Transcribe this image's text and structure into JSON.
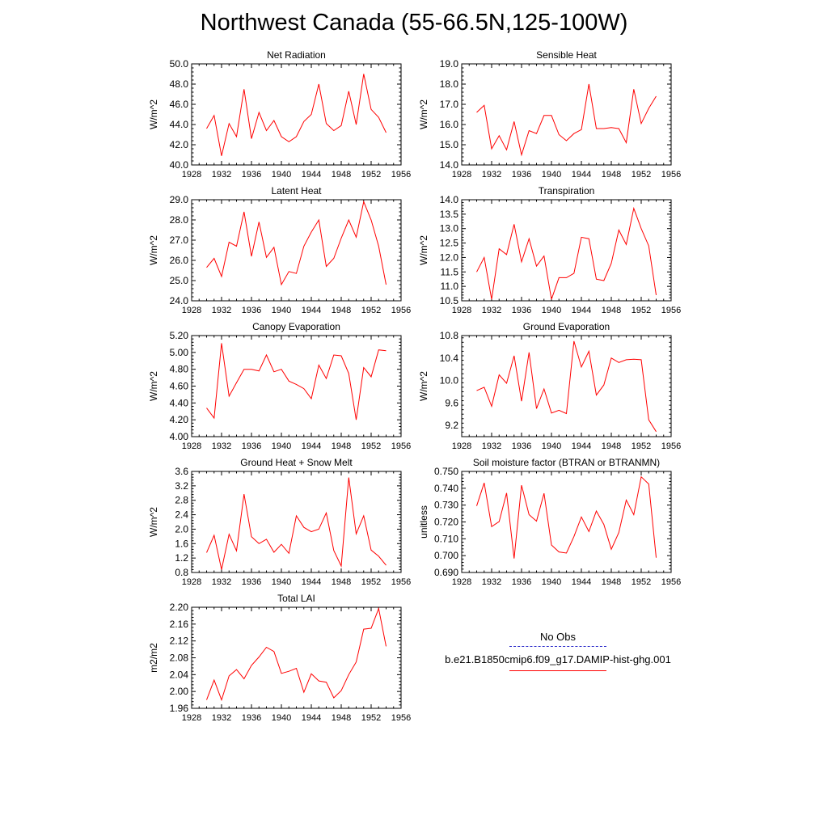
{
  "title": "Northwest Canada (55-66.5N,125-100W)",
  "legend": {
    "obs_label": "No Obs",
    "model_label": "b.e21.B1850cmip6.f09_g17.DAMIP-hist-ghg.001",
    "obs_color": "#3333cc",
    "model_color": "#ff0000"
  },
  "chart_data": [
    {
      "type": "line",
      "title": "Net Radiation",
      "ylabel": "W/m^2",
      "xlabel": "",
      "xlim": [
        1928,
        1956
      ],
      "xticks": [
        1928,
        1932,
        1936,
        1940,
        1944,
        1948,
        1952,
        1956
      ],
      "ylim": [
        40.0,
        50.0
      ],
      "yticks": [
        "40.0",
        "42.0",
        "44.0",
        "46.0",
        "48.0",
        "50.0"
      ],
      "x": [
        1930,
        1931,
        1932,
        1933,
        1934,
        1935,
        1936,
        1937,
        1938,
        1939,
        1940,
        1941,
        1942,
        1943,
        1944,
        1945,
        1946,
        1947,
        1948,
        1949,
        1950,
        1951,
        1952,
        1953,
        1954
      ],
      "series": [
        {
          "name": "b.e21.B1850cmip6.f09_g17.DAMIP-hist-ghg.001",
          "values": [
            43.6,
            44.9,
            40.9,
            44.1,
            42.8,
            47.5,
            42.6,
            45.2,
            43.4,
            44.4,
            42.8,
            42.3,
            42.8,
            44.3,
            45.0,
            48.0,
            44.1,
            43.4,
            43.9,
            47.3,
            44.0,
            49.0,
            45.5,
            44.7,
            43.2
          ]
        }
      ]
    },
    {
      "type": "line",
      "title": "Sensible Heat",
      "ylabel": "W/m^2",
      "xlabel": "",
      "xlim": [
        1928,
        1956
      ],
      "xticks": [
        1928,
        1932,
        1936,
        1940,
        1944,
        1948,
        1952,
        1956
      ],
      "ylim": [
        14.0,
        19.0
      ],
      "yticks": [
        "14.0",
        "15.0",
        "16.0",
        "17.0",
        "18.0",
        "19.0"
      ],
      "x": [
        1930,
        1931,
        1932,
        1933,
        1934,
        1935,
        1936,
        1937,
        1938,
        1939,
        1940,
        1941,
        1942,
        1943,
        1944,
        1945,
        1946,
        1947,
        1948,
        1949,
        1950,
        1951,
        1952,
        1953,
        1954
      ],
      "series": [
        {
          "name": "b.e21.B1850cmip6.f09_g17.DAMIP-hist-ghg.001",
          "values": [
            16.6,
            16.95,
            14.8,
            15.45,
            14.75,
            16.15,
            14.5,
            15.7,
            15.55,
            16.45,
            16.45,
            15.5,
            15.2,
            15.55,
            15.75,
            18.0,
            15.8,
            15.8,
            15.85,
            15.8,
            15.1,
            17.75,
            16.05,
            16.8,
            17.4
          ]
        }
      ]
    },
    {
      "type": "line",
      "title": "Latent Heat",
      "ylabel": "W/m^2",
      "xlabel": "",
      "xlim": [
        1928,
        1956
      ],
      "xticks": [
        1928,
        1932,
        1936,
        1940,
        1944,
        1948,
        1952,
        1956
      ],
      "ylim": [
        24.0,
        29.0
      ],
      "yticks": [
        "24.0",
        "25.0",
        "26.0",
        "27.0",
        "28.0",
        "29.0"
      ],
      "x": [
        1930,
        1931,
        1932,
        1933,
        1934,
        1935,
        1936,
        1937,
        1938,
        1939,
        1940,
        1941,
        1942,
        1943,
        1944,
        1945,
        1946,
        1947,
        1948,
        1949,
        1950,
        1951,
        1952,
        1953,
        1954
      ],
      "series": [
        {
          "name": "b.e21.B1850cmip6.f09_g17.DAMIP-hist-ghg.001",
          "values": [
            25.65,
            26.1,
            25.2,
            26.9,
            26.7,
            28.4,
            26.2,
            27.9,
            26.15,
            26.65,
            24.8,
            25.45,
            25.35,
            26.7,
            27.4,
            28.0,
            25.7,
            26.1,
            27.1,
            28.0,
            27.15,
            28.9,
            28.0,
            26.7,
            24.8
          ]
        }
      ]
    },
    {
      "type": "line",
      "title": "Transpiration",
      "ylabel": "W/m^2",
      "xlabel": "",
      "xlim": [
        1928,
        1956
      ],
      "xticks": [
        1928,
        1932,
        1936,
        1940,
        1944,
        1948,
        1952,
        1956
      ],
      "ylim": [
        10.5,
        14.0
      ],
      "yticks": [
        "10.5",
        "11.0",
        "11.5",
        "12.0",
        "12.5",
        "13.0",
        "13.5",
        "14.0"
      ],
      "x": [
        1930,
        1931,
        1932,
        1933,
        1934,
        1935,
        1936,
        1937,
        1938,
        1939,
        1940,
        1941,
        1942,
        1943,
        1944,
        1945,
        1946,
        1947,
        1948,
        1949,
        1950,
        1951,
        1952,
        1953,
        1954
      ],
      "series": [
        {
          "name": "b.e21.B1850cmip6.f09_g17.DAMIP-hist-ghg.001",
          "values": [
            11.5,
            12.0,
            10.55,
            12.3,
            12.1,
            13.15,
            11.85,
            12.65,
            11.7,
            12.05,
            10.55,
            11.3,
            11.3,
            11.45,
            12.7,
            12.65,
            11.25,
            11.2,
            11.8,
            12.95,
            12.45,
            13.7,
            13.0,
            12.4,
            10.7
          ]
        }
      ]
    },
    {
      "type": "line",
      "title": "Canopy Evaporation",
      "ylabel": "W/m^2",
      "xlabel": "",
      "xlim": [
        1928,
        1956
      ],
      "xticks": [
        1928,
        1932,
        1936,
        1940,
        1944,
        1948,
        1952,
        1956
      ],
      "ylim": [
        4.0,
        5.2
      ],
      "yticks": [
        "4.00",
        "4.20",
        "4.40",
        "4.60",
        "4.80",
        "5.00",
        "5.20"
      ],
      "x": [
        1930,
        1931,
        1932,
        1933,
        1934,
        1935,
        1936,
        1937,
        1938,
        1939,
        1940,
        1941,
        1942,
        1943,
        1944,
        1945,
        1946,
        1947,
        1948,
        1949,
        1950,
        1951,
        1952,
        1953,
        1954
      ],
      "series": [
        {
          "name": "b.e21.B1850cmip6.f09_g17.DAMIP-hist-ghg.001",
          "values": [
            4.34,
            4.22,
            5.11,
            4.48,
            4.64,
            4.8,
            4.8,
            4.78,
            4.97,
            4.77,
            4.8,
            4.66,
            4.62,
            4.57,
            4.45,
            4.85,
            4.69,
            4.97,
            4.96,
            4.75,
            4.2,
            4.82,
            4.71,
            5.03,
            5.02
          ]
        }
      ]
    },
    {
      "type": "line",
      "title": "Ground Evaporation",
      "ylabel": "W/m^2",
      "xlabel": "",
      "xlim": [
        1928,
        1956
      ],
      "xticks": [
        1928,
        1932,
        1936,
        1940,
        1944,
        1948,
        1952,
        1956
      ],
      "ylim": [
        9.0,
        10.8
      ],
      "yticks": [
        "9.2",
        "9.6",
        "10.0",
        "10.4",
        "10.8"
      ],
      "x": [
        1930,
        1931,
        1932,
        1933,
        1934,
        1935,
        1936,
        1937,
        1938,
        1939,
        1940,
        1941,
        1942,
        1943,
        1944,
        1945,
        1946,
        1947,
        1948,
        1949,
        1950,
        1951,
        1952,
        1953,
        1954
      ],
      "series": [
        {
          "name": "b.e21.B1850cmip6.f09_g17.DAMIP-hist-ghg.001",
          "values": [
            9.82,
            9.88,
            9.54,
            10.1,
            9.95,
            10.44,
            9.63,
            10.5,
            9.5,
            9.85,
            9.42,
            9.47,
            9.41,
            10.7,
            10.24,
            10.52,
            9.74,
            9.92,
            10.4,
            10.32,
            10.37,
            10.38,
            10.37,
            9.3,
            9.09
          ]
        }
      ]
    },
    {
      "type": "line",
      "title": "Ground Heat + Snow Melt",
      "ylabel": "W/m^2",
      "xlabel": "",
      "xlim": [
        1928,
        1956
      ],
      "xticks": [
        1928,
        1932,
        1936,
        1940,
        1944,
        1948,
        1952,
        1956
      ],
      "ylim": [
        0.8,
        3.6
      ],
      "yticks": [
        "0.8",
        "1.2",
        "1.6",
        "2.0",
        "2.4",
        "2.8",
        "3.2",
        "3.6"
      ],
      "x": [
        1930,
        1931,
        1932,
        1933,
        1934,
        1935,
        1936,
        1937,
        1938,
        1939,
        1940,
        1941,
        1942,
        1943,
        1944,
        1945,
        1946,
        1947,
        1948,
        1949,
        1950,
        1951,
        1952,
        1953,
        1954
      ],
      "series": [
        {
          "name": "b.e21.B1850cmip6.f09_g17.DAMIP-hist-ghg.001",
          "values": [
            1.35,
            1.83,
            0.88,
            1.86,
            1.4,
            2.97,
            1.79,
            1.6,
            1.72,
            1.36,
            1.58,
            1.33,
            2.37,
            2.05,
            1.93,
            2.0,
            2.45,
            1.41,
            0.98,
            3.43,
            1.87,
            2.37,
            1.42,
            1.25,
            1.0
          ]
        }
      ]
    },
    {
      "type": "line",
      "title": "Soil moisture factor (BTRAN or BTRANMN)",
      "ylabel": "unitless",
      "xlabel": "",
      "xlim": [
        1928,
        1956
      ],
      "xticks": [
        1928,
        1932,
        1936,
        1940,
        1944,
        1948,
        1952,
        1956
      ],
      "ylim": [
        0.69,
        0.75
      ],
      "yticks": [
        "0.690",
        "0.700",
        "0.710",
        "0.720",
        "0.730",
        "0.740",
        "0.750"
      ],
      "x": [
        1930,
        1931,
        1932,
        1933,
        1934,
        1935,
        1936,
        1937,
        1938,
        1939,
        1940,
        1941,
        1942,
        1943,
        1944,
        1945,
        1946,
        1947,
        1948,
        1949,
        1950,
        1951,
        1952,
        1953,
        1954
      ],
      "series": [
        {
          "name": "b.e21.B1850cmip6.f09_g17.DAMIP-hist-ghg.001",
          "values": [
            0.7295,
            0.7432,
            0.7172,
            0.7202,
            0.7372,
            0.6983,
            0.7418,
            0.7243,
            0.7205,
            0.737,
            0.7063,
            0.7022,
            0.7015,
            0.7113,
            0.723,
            0.7143,
            0.7265,
            0.7185,
            0.7038,
            0.7137,
            0.733,
            0.7243,
            0.7468,
            0.7425,
            0.6988
          ]
        }
      ]
    },
    {
      "type": "line",
      "title": "Total LAI",
      "ylabel": "m2/m2",
      "xlabel": "",
      "xlim": [
        1928,
        1956
      ],
      "xticks": [
        1928,
        1932,
        1936,
        1940,
        1944,
        1948,
        1952,
        1956
      ],
      "ylim": [
        1.96,
        2.2
      ],
      "yticks": [
        "1.96",
        "2.00",
        "2.04",
        "2.08",
        "2.12",
        "2.16",
        "2.20"
      ],
      "x": [
        1930,
        1931,
        1932,
        1933,
        1934,
        1935,
        1936,
        1937,
        1938,
        1939,
        1940,
        1941,
        1942,
        1943,
        1944,
        1945,
        1946,
        1947,
        1948,
        1949,
        1950,
        1951,
        1952,
        1953,
        1954
      ],
      "series": [
        {
          "name": "b.e21.B1850cmip6.f09_g17.DAMIP-hist-ghg.001",
          "values": [
            1.98,
            2.027,
            1.98,
            2.037,
            2.052,
            2.03,
            2.062,
            2.082,
            2.105,
            2.095,
            2.043,
            2.048,
            2.055,
            1.998,
            2.042,
            2.025,
            2.022,
            1.985,
            2.002,
            2.04,
            2.07,
            2.148,
            2.15,
            2.197,
            2.107
          ]
        }
      ]
    }
  ]
}
